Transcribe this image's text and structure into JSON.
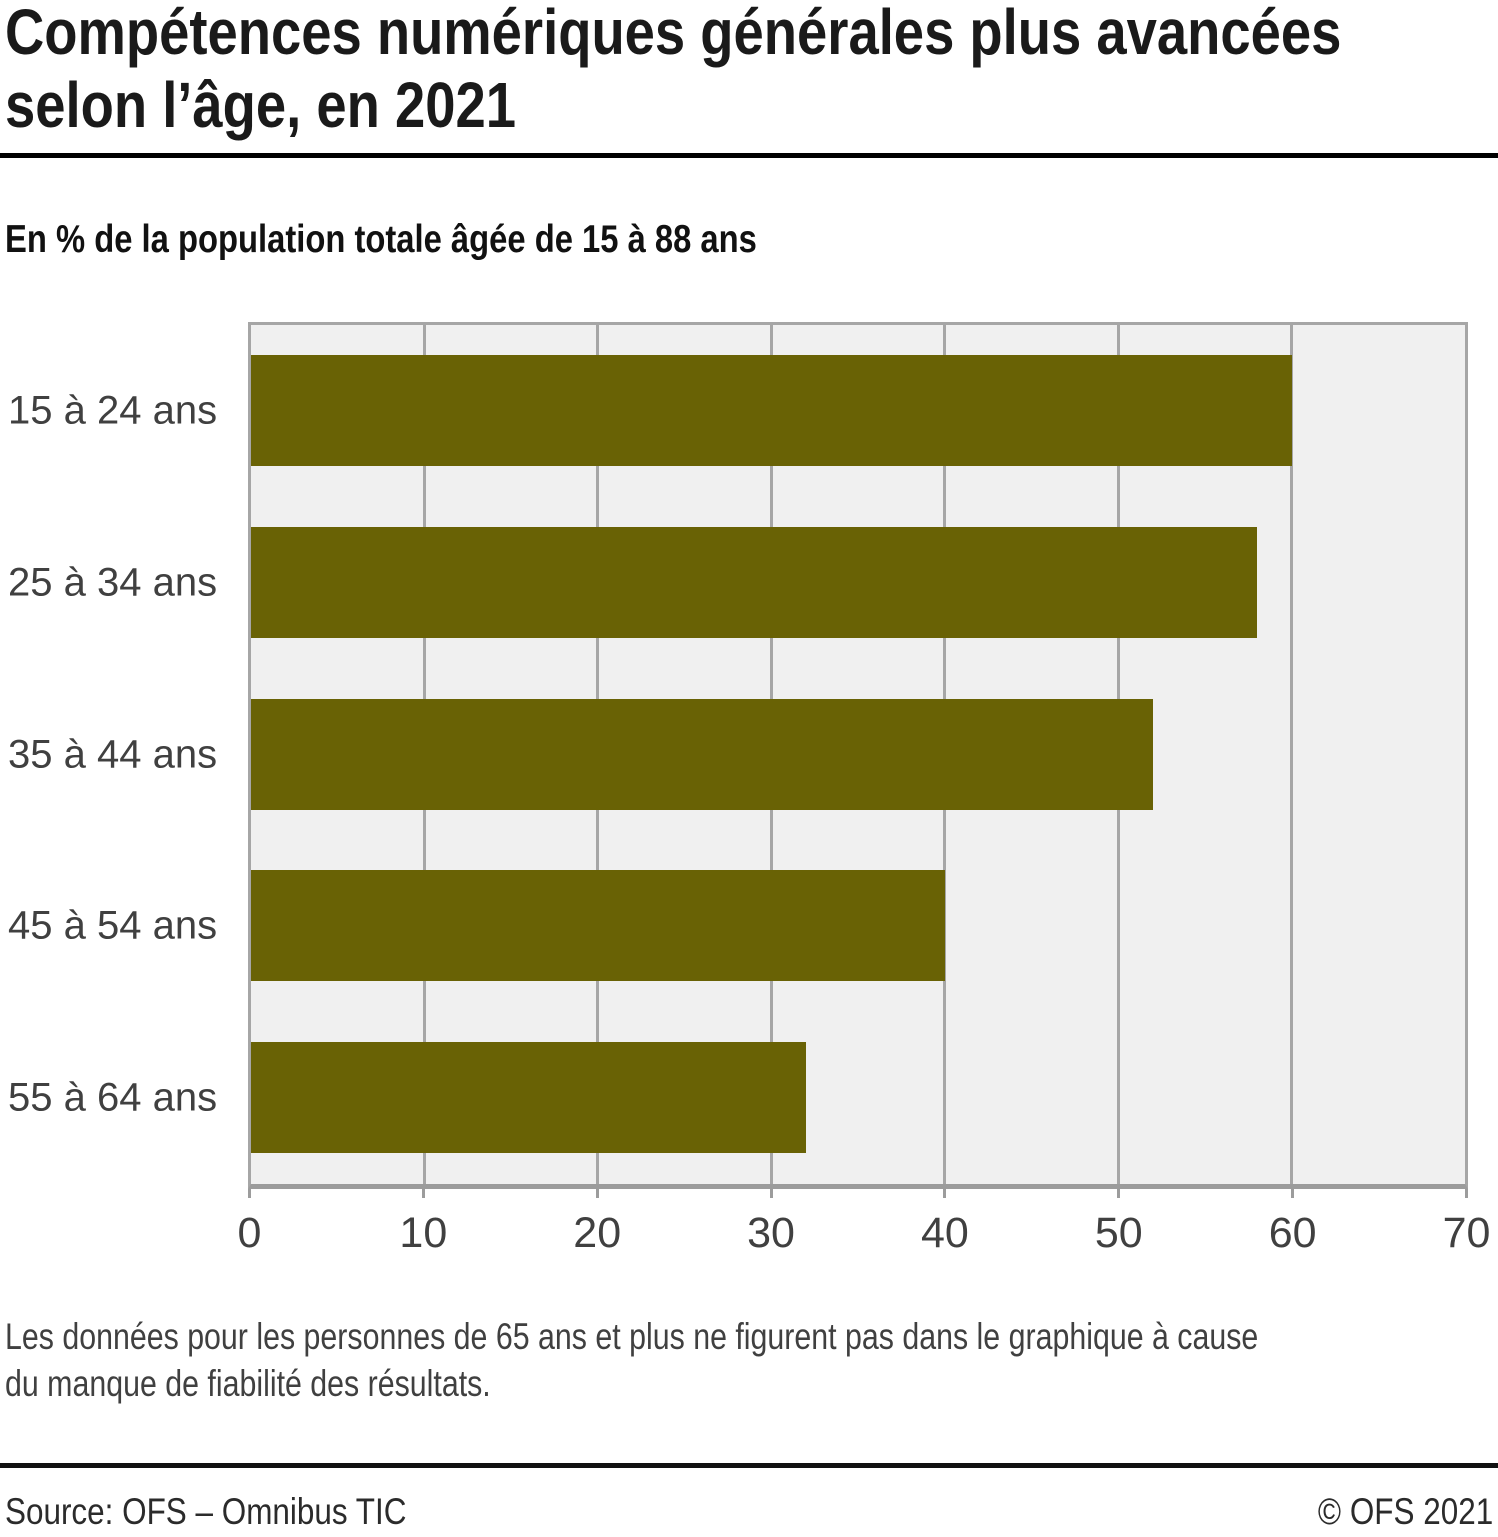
{
  "title_line1": "Compétences numériques générales plus avancées",
  "title_line2": "selon l’âge, en 2021",
  "subtitle": "En % de la population totale âgée de 15 à 88 ans",
  "note_line1": "Les données pour les personnes de 65 ans et plus ne figurent pas dans le graphique à cause",
  "note_line2": "du manque de fiabilité des résultats.",
  "footer": {
    "source": "Source: OFS – Omnibus TIC",
    "copyright": "© OFS 2021"
  },
  "colors": {
    "bar": "#696205",
    "plot_background": "#f0f0f0",
    "gridline": "#a6a6a6",
    "axis_line": "#9c9c9c",
    "label_text": "#404040",
    "title_text": "#1a1a1a"
  },
  "chart_data": {
    "type": "bar",
    "orientation": "horizontal",
    "title": "Compétences numériques générales plus avancées selon l’âge, en 2021",
    "subtitle": "En % de la population totale âgée de 15 à 88 ans",
    "categories": [
      "15 à 24 ans",
      "25 à 34 ans",
      "35 à 44 ans",
      "45 à 54 ans",
      "55 à 64 ans"
    ],
    "values": [
      60,
      58,
      52,
      40,
      32
    ],
    "unit": "%",
    "xlabel": "",
    "ylabel": "",
    "xlim": [
      0,
      70
    ],
    "xticks": [
      0,
      10,
      20,
      30,
      40,
      50,
      60,
      70
    ],
    "grid": true,
    "legend": false
  }
}
